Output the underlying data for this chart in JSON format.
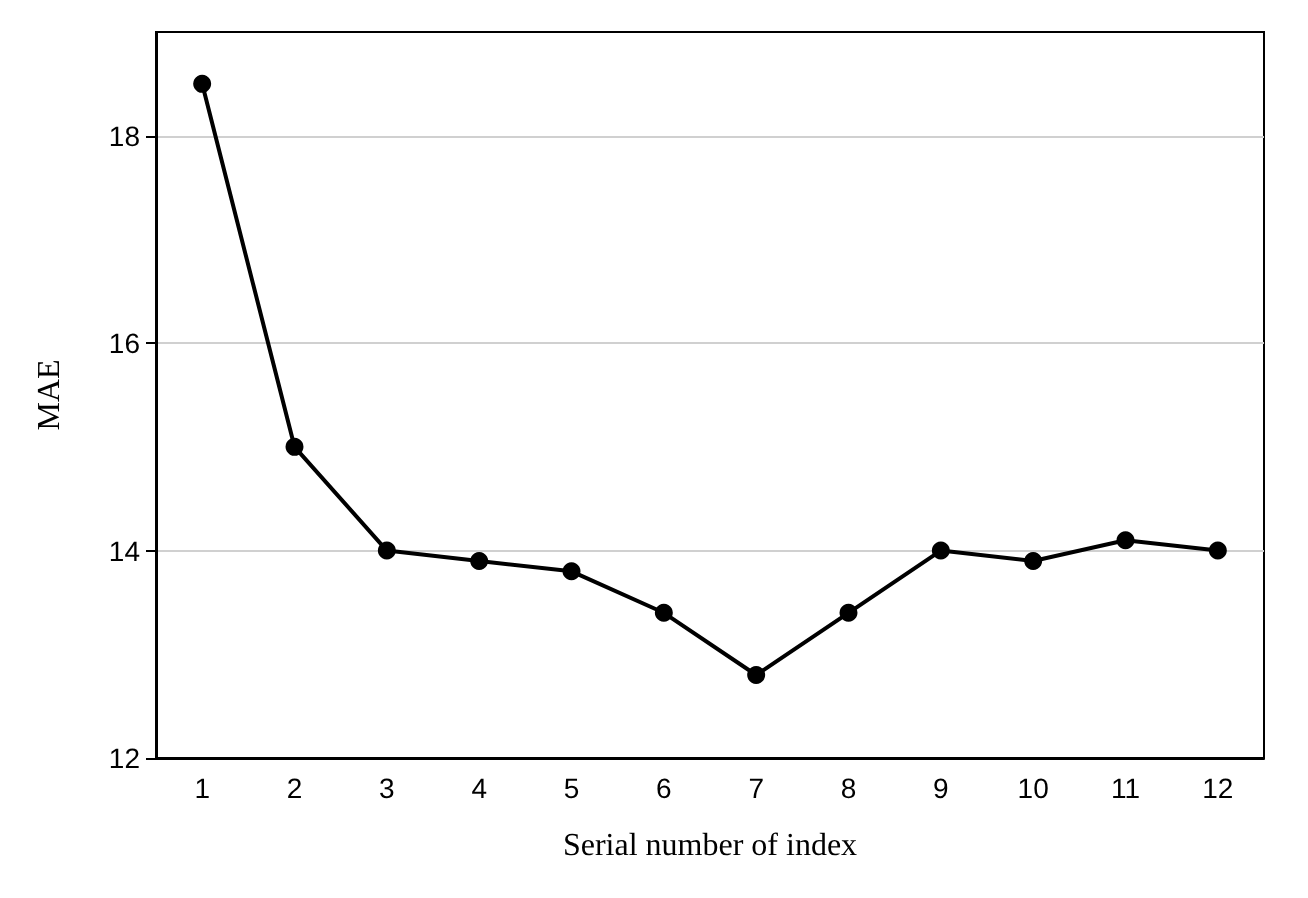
{
  "chart_data": {
    "type": "line",
    "xlabel": "Serial number of index",
    "ylabel": "MAE",
    "categories": [
      "1",
      "2",
      "3",
      "4",
      "5",
      "6",
      "7",
      "8",
      "9",
      "10",
      "11",
      "12"
    ],
    "series": [
      {
        "color": "#000000",
        "values": [
          18.5,
          15.0,
          14.0,
          13.9,
          13.8,
          13.4,
          12.8,
          13.4,
          14.0,
          13.9,
          14.1,
          14.0
        ]
      }
    ],
    "ylim": [
      12,
      19
    ],
    "yticks": [
      12,
      14,
      16,
      18
    ],
    "grid": "y",
    "marker": "circle",
    "line_style": "solid"
  }
}
